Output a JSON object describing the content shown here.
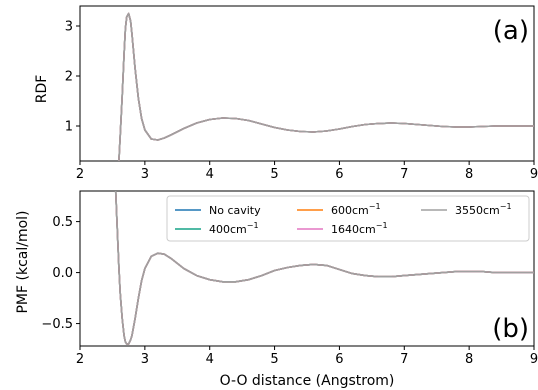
{
  "chart_data": [
    {
      "type": "line",
      "panel": "(a)",
      "xlabel": "",
      "ylabel": "RDF",
      "xlim": [
        2,
        9
      ],
      "ylim": [
        0.3,
        3.4
      ],
      "xticks": [
        "2",
        "3",
        "4",
        "5",
        "6",
        "7",
        "8",
        "9"
      ],
      "yticks": [
        "1",
        "2",
        "3"
      ],
      "x": [
        2.6,
        2.62,
        2.65,
        2.68,
        2.7,
        2.72,
        2.75,
        2.78,
        2.8,
        2.85,
        2.9,
        2.95,
        3.0,
        3.1,
        3.2,
        3.3,
        3.4,
        3.6,
        3.8,
        4.0,
        4.2,
        4.4,
        4.6,
        4.8,
        5.0,
        5.2,
        5.4,
        5.6,
        5.8,
        6.0,
        6.2,
        6.4,
        6.6,
        6.8,
        7.0,
        7.2,
        7.4,
        7.6,
        7.8,
        8.0,
        8.2,
        8.4,
        8.6,
        8.8,
        9.0
      ],
      "series": [
        {
          "name": "No cavity",
          "values": [
            0.3,
            0.8,
            1.6,
            2.45,
            2.95,
            3.18,
            3.25,
            3.1,
            2.85,
            2.15,
            1.55,
            1.15,
            0.92,
            0.74,
            0.72,
            0.76,
            0.82,
            0.95,
            1.06,
            1.13,
            1.16,
            1.15,
            1.11,
            1.04,
            0.97,
            0.92,
            0.89,
            0.88,
            0.9,
            0.94,
            0.99,
            1.03,
            1.05,
            1.06,
            1.05,
            1.03,
            1.01,
            0.99,
            0.98,
            0.98,
            0.99,
            1.0,
            1.0,
            1.0,
            1.0
          ]
        },
        {
          "name": "400cm⁻¹",
          "values": [
            0.3,
            0.8,
            1.6,
            2.45,
            2.95,
            3.18,
            3.25,
            3.1,
            2.85,
            2.15,
            1.55,
            1.15,
            0.92,
            0.74,
            0.72,
            0.76,
            0.82,
            0.95,
            1.06,
            1.13,
            1.16,
            1.15,
            1.11,
            1.04,
            0.97,
            0.92,
            0.89,
            0.88,
            0.9,
            0.94,
            0.99,
            1.03,
            1.05,
            1.06,
            1.05,
            1.03,
            1.01,
            0.99,
            0.98,
            0.98,
            0.99,
            1.0,
            1.0,
            1.0,
            1.0
          ]
        },
        {
          "name": "600cm⁻¹",
          "values": [
            0.3,
            0.8,
            1.6,
            2.45,
            2.95,
            3.18,
            3.25,
            3.1,
            2.85,
            2.15,
            1.55,
            1.15,
            0.92,
            0.74,
            0.72,
            0.76,
            0.82,
            0.95,
            1.06,
            1.13,
            1.16,
            1.15,
            1.11,
            1.04,
            0.97,
            0.92,
            0.89,
            0.88,
            0.9,
            0.94,
            0.99,
            1.03,
            1.05,
            1.06,
            1.05,
            1.03,
            1.01,
            0.99,
            0.98,
            0.98,
            0.99,
            1.0,
            1.0,
            1.0,
            1.0
          ]
        },
        {
          "name": "1640cm⁻¹",
          "values": [
            0.3,
            0.8,
            1.6,
            2.45,
            2.95,
            3.18,
            3.25,
            3.1,
            2.85,
            2.15,
            1.55,
            1.15,
            0.92,
            0.74,
            0.72,
            0.76,
            0.82,
            0.95,
            1.06,
            1.13,
            1.16,
            1.15,
            1.11,
            1.04,
            0.97,
            0.92,
            0.89,
            0.88,
            0.9,
            0.94,
            0.99,
            1.03,
            1.05,
            1.06,
            1.05,
            1.03,
            1.01,
            0.99,
            0.98,
            0.98,
            0.99,
            1.0,
            1.0,
            1.0,
            1.0
          ]
        },
        {
          "name": "3550cm⁻¹",
          "values": [
            0.3,
            0.8,
            1.6,
            2.45,
            2.95,
            3.18,
            3.25,
            3.1,
            2.85,
            2.15,
            1.55,
            1.15,
            0.92,
            0.74,
            0.72,
            0.76,
            0.82,
            0.95,
            1.06,
            1.13,
            1.16,
            1.15,
            1.11,
            1.04,
            0.97,
            0.92,
            0.89,
            0.88,
            0.9,
            0.94,
            0.99,
            1.03,
            1.05,
            1.06,
            1.05,
            1.03,
            1.01,
            0.99,
            0.98,
            0.98,
            0.99,
            1.0,
            1.0,
            1.0,
            1.0
          ]
        }
      ]
    },
    {
      "type": "line",
      "panel": "(b)",
      "xlabel": "O-O distance (Angstrom)",
      "ylabel": "PMF (kcal/mol)",
      "xlim": [
        2,
        9
      ],
      "ylim": [
        -0.72,
        0.8
      ],
      "xticks": [
        "2",
        "3",
        "4",
        "5",
        "6",
        "7",
        "8",
        "9"
      ],
      "yticks": [
        "−0.5",
        "0.0",
        "0.5"
      ],
      "legend_position": "top-right",
      "x": [
        2.55,
        2.58,
        2.6,
        2.62,
        2.65,
        2.68,
        2.7,
        2.72,
        2.75,
        2.78,
        2.8,
        2.85,
        2.9,
        2.95,
        3.0,
        3.1,
        3.2,
        3.3,
        3.4,
        3.6,
        3.8,
        4.0,
        4.2,
        4.4,
        4.6,
        4.8,
        5.0,
        5.2,
        5.4,
        5.6,
        5.8,
        6.0,
        6.2,
        6.4,
        6.6,
        6.8,
        7.0,
        7.2,
        7.4,
        7.6,
        7.8,
        8.0,
        8.2,
        8.4,
        8.6,
        8.8,
        9.0
      ],
      "series": [
        {
          "name": "No cavity",
          "values": [
            0.8,
            0.35,
            0.05,
            -0.2,
            -0.45,
            -0.62,
            -0.68,
            -0.7,
            -0.7,
            -0.66,
            -0.62,
            -0.45,
            -0.25,
            -0.08,
            0.04,
            0.16,
            0.19,
            0.18,
            0.14,
            0.04,
            -0.03,
            -0.07,
            -0.09,
            -0.09,
            -0.07,
            -0.03,
            0.02,
            0.05,
            0.07,
            0.08,
            0.07,
            0.03,
            -0.01,
            -0.03,
            -0.04,
            -0.04,
            -0.03,
            -0.02,
            -0.01,
            0.0,
            0.01,
            0.01,
            0.01,
            0.0,
            0.0,
            0.0,
            0.0
          ]
        },
        {
          "name": "400cm⁻¹",
          "values": [
            0.8,
            0.35,
            0.05,
            -0.2,
            -0.45,
            -0.62,
            -0.68,
            -0.7,
            -0.7,
            -0.66,
            -0.62,
            -0.45,
            -0.25,
            -0.08,
            0.04,
            0.16,
            0.19,
            0.18,
            0.14,
            0.04,
            -0.03,
            -0.07,
            -0.09,
            -0.09,
            -0.07,
            -0.03,
            0.02,
            0.05,
            0.07,
            0.08,
            0.07,
            0.03,
            -0.01,
            -0.03,
            -0.04,
            -0.04,
            -0.03,
            -0.02,
            -0.01,
            0.0,
            0.01,
            0.01,
            0.01,
            0.0,
            0.0,
            0.0,
            0.0
          ]
        },
        {
          "name": "600cm⁻¹",
          "values": [
            0.8,
            0.35,
            0.05,
            -0.2,
            -0.45,
            -0.62,
            -0.68,
            -0.7,
            -0.7,
            -0.66,
            -0.62,
            -0.45,
            -0.25,
            -0.08,
            0.04,
            0.16,
            0.19,
            0.18,
            0.14,
            0.04,
            -0.03,
            -0.07,
            -0.09,
            -0.09,
            -0.07,
            -0.03,
            0.02,
            0.05,
            0.07,
            0.08,
            0.07,
            0.03,
            -0.01,
            -0.03,
            -0.04,
            -0.04,
            -0.03,
            -0.02,
            -0.01,
            0.0,
            0.01,
            0.01,
            0.01,
            0.0,
            0.0,
            0.0,
            0.0
          ]
        },
        {
          "name": "1640cm⁻¹",
          "values": [
            0.8,
            0.35,
            0.05,
            -0.2,
            -0.45,
            -0.62,
            -0.68,
            -0.7,
            -0.7,
            -0.66,
            -0.62,
            -0.45,
            -0.25,
            -0.08,
            0.04,
            0.16,
            0.19,
            0.18,
            0.14,
            0.04,
            -0.03,
            -0.07,
            -0.09,
            -0.09,
            -0.07,
            -0.03,
            0.02,
            0.05,
            0.07,
            0.08,
            0.07,
            0.03,
            -0.01,
            -0.03,
            -0.04,
            -0.04,
            -0.03,
            -0.02,
            -0.01,
            0.0,
            0.01,
            0.01,
            0.01,
            0.0,
            0.0,
            0.0,
            0.0
          ]
        },
        {
          "name": "3550cm⁻¹",
          "values": [
            0.8,
            0.35,
            0.05,
            -0.2,
            -0.45,
            -0.62,
            -0.68,
            -0.7,
            -0.7,
            -0.66,
            -0.62,
            -0.45,
            -0.25,
            -0.08,
            0.04,
            0.16,
            0.19,
            0.18,
            0.14,
            0.04,
            -0.03,
            -0.07,
            -0.09,
            -0.09,
            -0.07,
            -0.03,
            0.02,
            0.05,
            0.07,
            0.08,
            0.07,
            0.03,
            -0.01,
            -0.03,
            -0.04,
            -0.04,
            -0.03,
            -0.02,
            -0.01,
            0.0,
            0.01,
            0.01,
            0.01,
            0.0,
            0.0,
            0.0,
            0.0
          ]
        }
      ]
    }
  ],
  "legend": [
    {
      "label": "No cavity",
      "color": "#1f77b4"
    },
    {
      "label": "600cm",
      "sup": "−1",
      "color": "#ff7f0e"
    },
    {
      "label": "3550cm",
      "sup": "−1",
      "color": "#a0a0a0"
    },
    {
      "label": "400cm",
      "sup": "−1",
      "color": "#17a387"
    },
    {
      "label": "1640cm",
      "sup": "−1",
      "color": "#e377c2"
    }
  ]
}
